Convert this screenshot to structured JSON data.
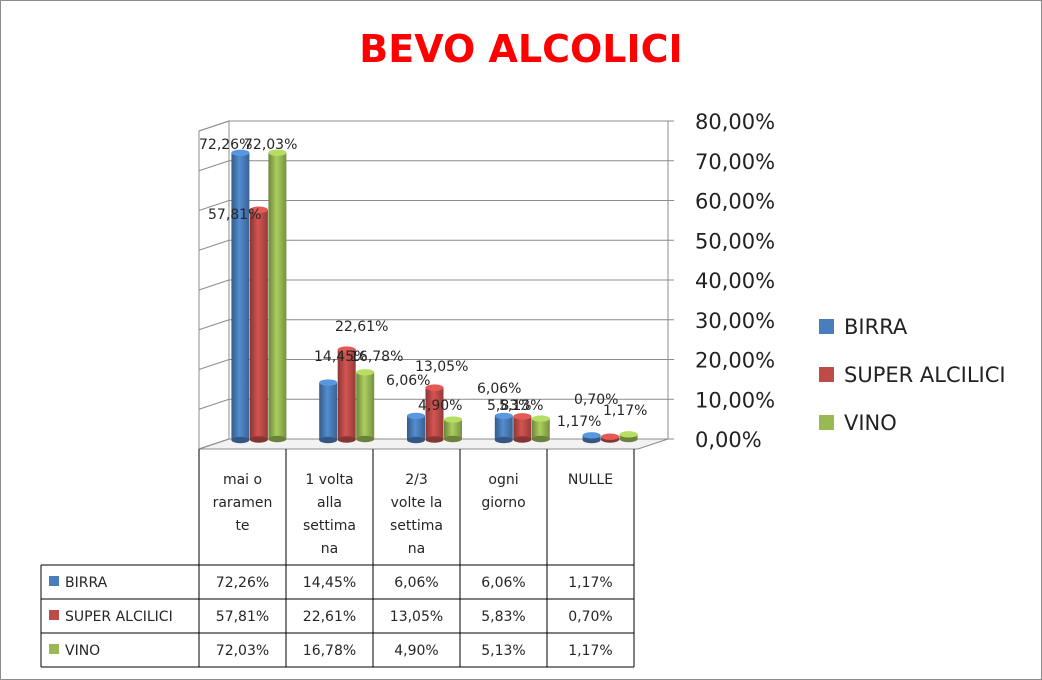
{
  "chart_data": {
    "type": "bar",
    "title": "BEVO ALCOLICI",
    "categories": [
      [
        "mai o",
        "raramen",
        "te"
      ],
      [
        "1 volta",
        "alla",
        "settima",
        "na"
      ],
      [
        "2/3",
        "volte la",
        "settima",
        "na"
      ],
      [
        "ogni",
        "giorno"
      ],
      [
        "NULLE"
      ]
    ],
    "series": [
      {
        "name": "BIRRA",
        "color": "#4a7ebb",
        "values": [
          72.26,
          14.45,
          6.06,
          6.06,
          1.17
        ],
        "labels": [
          "72,26%",
          "14,45%",
          "6,06%",
          "6,06%",
          "1,17%"
        ]
      },
      {
        "name": "SUPER ALCILICI",
        "color": "#be4b48",
        "values": [
          57.81,
          22.61,
          13.05,
          5.83,
          0.7
        ],
        "labels": [
          "57,81%",
          "22,61%",
          "13,05%",
          "5,83%",
          "0,70%"
        ]
      },
      {
        "name": "VINO",
        "color": "#98b954",
        "values": [
          72.03,
          16.78,
          4.9,
          5.13,
          1.17
        ],
        "labels": [
          "72,03%",
          "16,78%",
          "4,90%",
          "5,13%",
          "1,17%"
        ]
      }
    ],
    "yticks": [
      "0,00%",
      "10,00%",
      "20,00%",
      "30,00%",
      "40,00%",
      "50,00%",
      "60,00%",
      "70,00%",
      "80,00%"
    ],
    "ylim": [
      0,
      80
    ],
    "grid": true,
    "legend": "right",
    "data_table": true
  }
}
